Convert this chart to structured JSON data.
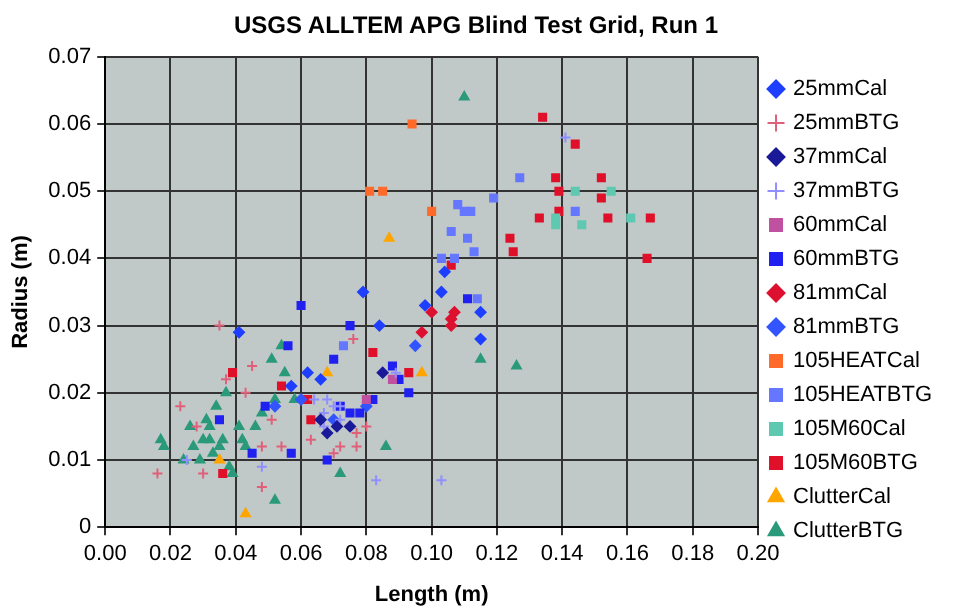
{
  "chart_data": {
    "type": "scatter",
    "title": "USGS ALLTEM APG Blind Test Grid, Run 1",
    "xlabel": "Length (m)",
    "ylabel": "Radius (m)",
    "xlim": [
      0,
      0.2
    ],
    "xticks": [
      {
        "value": 0,
        "label": "0.00"
      },
      {
        "value": 0.02,
        "label": "0.02"
      },
      {
        "value": 0.04,
        "label": "0.04"
      },
      {
        "value": 0.06,
        "label": "0.06"
      },
      {
        "value": 0.08,
        "label": "0.08"
      },
      {
        "value": 0.1,
        "label": "0.10"
      },
      {
        "value": 0.12,
        "label": "0.12"
      },
      {
        "value": 0.14,
        "label": "0.14"
      },
      {
        "value": 0.16,
        "label": "0.16"
      },
      {
        "value": 0.18,
        "label": "0.18"
      },
      {
        "value": 0.2,
        "label": "0.20"
      }
    ],
    "ylim": [
      0,
      0.07
    ],
    "yticks": [
      0,
      0.01,
      0.02,
      0.03,
      0.04,
      0.05,
      0.06,
      0.07
    ],
    "grid": true,
    "legend": "right",
    "series": [
      {
        "name": "25mmCal",
        "color": "#1f3fff",
        "marker": "diamond",
        "x": [
          0.079,
          0.103,
          0.084,
          0.098,
          0.104,
          0.115,
          0.115,
          0.041,
          0.057,
          0.062,
          0.066
        ],
        "values": [
          0.035,
          0.035,
          0.03,
          0.033,
          0.038,
          0.032,
          0.028,
          0.029,
          0.021,
          0.023,
          0.022
        ]
      },
      {
        "name": "25mmBTG",
        "color": "#e0607a",
        "marker": "cross",
        "x": [
          0.035,
          0.016,
          0.023,
          0.028,
          0.03,
          0.037,
          0.043,
          0.045,
          0.048,
          0.054,
          0.063,
          0.077,
          0.08,
          0.076,
          0.051,
          0.048,
          0.072,
          0.07,
          0.077
        ],
        "values": [
          0.03,
          0.008,
          0.018,
          0.015,
          0.008,
          0.022,
          0.02,
          0.024,
          0.012,
          0.012,
          0.013,
          0.014,
          0.015,
          0.028,
          0.016,
          0.006,
          0.012,
          0.011,
          0.012
        ]
      },
      {
        "name": "37mmCal",
        "color": "#1a1a99",
        "marker": "diamond",
        "x": [
          0.066,
          0.068,
          0.071,
          0.075,
          0.085
        ],
        "values": [
          0.016,
          0.014,
          0.015,
          0.015,
          0.023
        ]
      },
      {
        "name": "37mmBTG",
        "color": "#8f8fff",
        "marker": "cross",
        "x": [
          0.141,
          0.083,
          0.103,
          0.025,
          0.048,
          0.064,
          0.072,
          0.067,
          0.067,
          0.068,
          0.07,
          0.072,
          0.089
        ],
        "values": [
          0.058,
          0.007,
          0.007,
          0.01,
          0.009,
          0.019,
          0.018,
          0.017,
          0.015,
          0.019,
          0.018,
          0.016,
          0.023
        ]
      },
      {
        "name": "60mmCal",
        "color": "#c050a0",
        "marker": "square",
        "x": [
          0.08,
          0.088
        ],
        "values": [
          0.019,
          0.022
        ]
      },
      {
        "name": "60mmBTG",
        "color": "#2020f0",
        "marker": "square",
        "x": [
          0.06,
          0.075,
          0.056,
          0.07,
          0.049,
          0.035,
          0.045,
          0.057,
          0.068,
          0.072,
          0.082,
          0.088,
          0.09,
          0.093,
          0.075,
          0.078,
          0.111
        ],
        "values": [
          0.033,
          0.03,
          0.027,
          0.025,
          0.018,
          0.016,
          0.011,
          0.011,
          0.01,
          0.018,
          0.019,
          0.024,
          0.022,
          0.02,
          0.017,
          0.017,
          0.034
        ]
      },
      {
        "name": "81mmCal",
        "color": "#dd1030",
        "marker": "diamond",
        "x": [
          0.1,
          0.107,
          0.106,
          0.106,
          0.097
        ],
        "values": [
          0.032,
          0.032,
          0.031,
          0.03,
          0.029
        ]
      },
      {
        "name": "81mmBTG",
        "color": "#3355ff",
        "marker": "diamond",
        "x": [
          0.052,
          0.06,
          0.07,
          0.08,
          0.095
        ],
        "values": [
          0.018,
          0.019,
          0.016,
          0.018,
          0.027
        ]
      },
      {
        "name": "105HEATCal",
        "color": "#ff6a2a",
        "marker": "square",
        "x": [
          0.081,
          0.085,
          0.094,
          0.1
        ],
        "values": [
          0.05,
          0.05,
          0.06,
          0.047
        ]
      },
      {
        "name": "105HEATBTG",
        "color": "#6677ff",
        "marker": "square",
        "x": [
          0.127,
          0.108,
          0.11,
          0.112,
          0.119,
          0.106,
          0.111,
          0.113,
          0.103,
          0.107,
          0.114,
          0.144,
          0.073
        ],
        "values": [
          0.052,
          0.048,
          0.047,
          0.047,
          0.049,
          0.044,
          0.043,
          0.041,
          0.04,
          0.04,
          0.034,
          0.047,
          0.027
        ]
      },
      {
        "name": "105M60Cal",
        "color": "#5fc8b0",
        "marker": "square",
        "x": [
          0.144,
          0.155,
          0.138,
          0.138,
          0.146,
          0.161
        ],
        "values": [
          0.05,
          0.05,
          0.046,
          0.045,
          0.045,
          0.046
        ]
      },
      {
        "name": "105M60BTG",
        "color": "#e0102a",
        "marker": "square",
        "x": [
          0.134,
          0.144,
          0.138,
          0.139,
          0.152,
          0.152,
          0.139,
          0.133,
          0.154,
          0.167,
          0.124,
          0.125,
          0.166,
          0.106,
          0.082,
          0.093,
          0.039,
          0.054,
          0.062,
          0.063,
          0.036
        ],
        "values": [
          0.061,
          0.057,
          0.052,
          0.05,
          0.052,
          0.049,
          0.047,
          0.046,
          0.046,
          0.046,
          0.043,
          0.041,
          0.04,
          0.039,
          0.026,
          0.023,
          0.023,
          0.021,
          0.019,
          0.016,
          0.008
        ]
      },
      {
        "name": "ClutterCal",
        "color": "#ffa500",
        "marker": "triangle",
        "x": [
          0.035,
          0.043,
          0.068,
          0.087,
          0.097
        ],
        "values": [
          0.01,
          0.002,
          0.023,
          0.043,
          0.023
        ]
      },
      {
        "name": "ClutterBTG",
        "color": "#2a9a7a",
        "marker": "triangle",
        "x": [
          0.11,
          0.115,
          0.126,
          0.086,
          0.072,
          0.017,
          0.018,
          0.024,
          0.026,
          0.027,
          0.029,
          0.03,
          0.031,
          0.032,
          0.032,
          0.033,
          0.034,
          0.035,
          0.036,
          0.038,
          0.039,
          0.037,
          0.041,
          0.042,
          0.043,
          0.046,
          0.048,
          0.051,
          0.052,
          0.052,
          0.055,
          0.054,
          0.058
        ],
        "values": [
          0.064,
          0.025,
          0.024,
          0.012,
          0.008,
          0.013,
          0.012,
          0.01,
          0.015,
          0.012,
          0.01,
          0.013,
          0.016,
          0.015,
          0.013,
          0.011,
          0.018,
          0.012,
          0.013,
          0.009,
          0.008,
          0.02,
          0.015,
          0.013,
          0.012,
          0.015,
          0.017,
          0.025,
          0.019,
          0.004,
          0.023,
          0.027,
          0.019
        ]
      }
    ]
  }
}
